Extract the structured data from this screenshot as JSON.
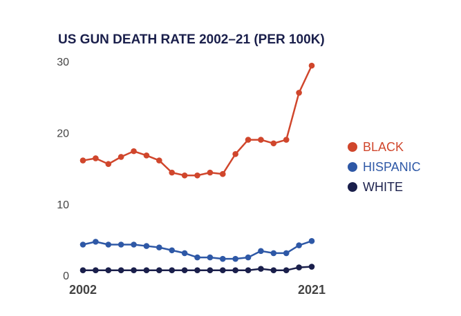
{
  "chart_data": {
    "type": "line",
    "title": "US GUN DEATH RATE 2002–21 (PER 100K)",
    "categories": [
      "2002",
      null,
      null,
      null,
      null,
      null,
      null,
      null,
      null,
      null,
      null,
      null,
      null,
      null,
      null,
      null,
      null,
      null,
      "2021"
    ],
    "series": [
      {
        "name": "BLACK",
        "color": "#d0462c",
        "values": [
          16.3,
          16.6,
          15.8,
          16.8,
          17.6,
          17.0,
          16.3,
          14.6,
          14.2,
          14.2,
          14.6,
          14.4,
          17.2,
          19.2,
          19.2,
          18.7,
          19.2,
          25.8,
          29.6
        ]
      },
      {
        "name": "HISPANIC",
        "color": "#2e58a6",
        "values": [
          4.5,
          4.9,
          4.5,
          4.5,
          4.5,
          4.3,
          4.1,
          3.7,
          3.3,
          2.7,
          2.7,
          2.5,
          2.5,
          2.7,
          3.6,
          3.3,
          3.3,
          4.4,
          5.0
        ]
      },
      {
        "name": "WHITE",
        "color": "#1a1f4b",
        "values": [
          0.9,
          0.9,
          0.9,
          0.9,
          0.9,
          0.9,
          0.9,
          0.9,
          0.9,
          0.9,
          0.9,
          0.9,
          0.9,
          0.9,
          1.1,
          0.9,
          0.9,
          1.3,
          1.4
        ]
      }
    ],
    "ylim": [
      0,
      30
    ],
    "yticks": [
      0,
      10,
      20,
      30
    ],
    "grid": false,
    "legend": "right"
  }
}
